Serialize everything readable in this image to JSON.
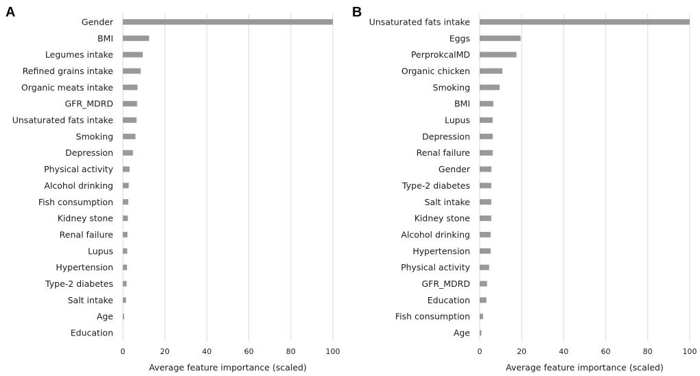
{
  "colors": {
    "bar": "#999999",
    "grid": "#d9d9d9",
    "text": "#1a1a1a"
  },
  "chart_data": [
    {
      "type": "bar",
      "orientation": "horizontal",
      "panel_label": "A",
      "categories": [
        "Gender",
        "BMI",
        "Legumes intake",
        "Refined grains intake",
        "Organic meats intake",
        "GFR_MDRD",
        "Unsaturated fats intake",
        "Smoking",
        "Depression",
        "Physical activity",
        "Alcohol drinking",
        "Fish consumption",
        "Kidney stone",
        "Renal failure",
        "Lupus",
        "Hypertension",
        "Type-2 diabetes",
        "Salt intake",
        "Age",
        "Education"
      ],
      "values": [
        100,
        12.5,
        9.5,
        8.5,
        7,
        6.8,
        6.5,
        6,
        4.8,
        3.2,
        2.8,
        2.6,
        2.4,
        2.2,
        2.1,
        2,
        1.8,
        1.5,
        0.6,
        0
      ],
      "xlabel": "Average feature importance (scaled)",
      "xlim": [
        0,
        100
      ],
      "xticks": [
        0,
        20,
        40,
        60,
        80,
        100
      ],
      "grid": "vertical"
    },
    {
      "type": "bar",
      "orientation": "horizontal",
      "panel_label": "B",
      "categories": [
        "Unsaturated fats intake",
        "Eggs",
        "PerprokcalMD",
        "Organic chicken",
        "Smoking",
        "BMI",
        "Lupus",
        "Depression",
        "Renal failure",
        "Gender",
        "Type-2 diabetes",
        "Salt intake",
        "Kidney stone",
        "Alcohol drinking",
        "Hypertension",
        "Physical activity",
        "GFR_MDRD",
        "Education",
        "Fish consumption",
        "Age"
      ],
      "values": [
        100,
        19.5,
        17.5,
        10.8,
        9.5,
        6.5,
        6.2,
        6.2,
        6.2,
        5.6,
        5.5,
        5.5,
        5.5,
        5.2,
        5.2,
        4.5,
        3.5,
        3.2,
        1.6,
        0.8
      ],
      "xlabel": "Average feature importance (scaled)",
      "xlim": [
        0,
        100
      ],
      "xticks": [
        0,
        20,
        40,
        60,
        80,
        100
      ],
      "grid": "vertical"
    }
  ]
}
